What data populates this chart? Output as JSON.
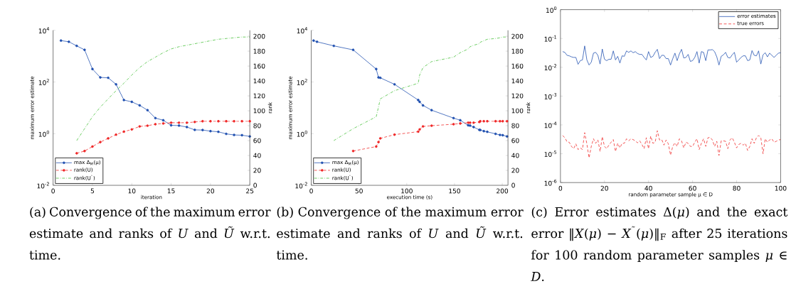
{
  "chart_data": [
    {
      "type": "line",
      "xlabel": "iteration",
      "ylabel": "maximum error estimate",
      "y2label": "rank",
      "x": [
        1,
        2,
        3,
        4,
        5,
        6,
        7,
        8,
        9,
        10,
        11,
        12,
        13,
        14,
        15,
        16,
        17,
        18,
        19,
        20,
        21,
        22,
        23,
        24,
        25
      ],
      "xlim": [
        0,
        25
      ],
      "xticks": [
        0,
        5,
        10,
        15,
        20,
        25
      ],
      "log": "y",
      "ylim": [
        0.01,
        10000
      ],
      "yticks": [
        {
          "value": 0.01,
          "label": "10$^{-2}$"
        },
        {
          "value": 1,
          "label": "10$^{0}$"
        },
        {
          "value": 100,
          "label": "10$^{2}$"
        },
        {
          "value": 10000,
          "label": "10$^{4}$"
        }
      ],
      "y2lim": [
        0,
        208
      ],
      "y2ticks": [
        0,
        20,
        40,
        60,
        80,
        100,
        120,
        140,
        160,
        180,
        200
      ],
      "legend": "bottom left",
      "series": [
        {
          "name": "max Δ$_{M}$(μ)",
          "color": "#2050b0",
          "marker": "circle",
          "line_style": "solid",
          "values": [
            4000,
            3600,
            2500,
            1750,
            316,
            150,
            145,
            81,
            20,
            17,
            12.4,
            8.1,
            4.0,
            3.3,
            2.1,
            2.05,
            1.8,
            1.4,
            1.38,
            1.25,
            1.18,
            0.98,
            0.89,
            0.87,
            0.78
          ]
        },
        {
          "name": "rank(U)",
          "color": "#f02828",
          "marker": "circle",
          "line_style": "dashed",
          "axis": "y2",
          "values": [
            null,
            null,
            43,
            46,
            52,
            58,
            63,
            68,
            72,
            75,
            79,
            80,
            82,
            83,
            84,
            84,
            84,
            85,
            86,
            86,
            86,
            86,
            86,
            86,
            86
          ]
        },
        {
          "name": "rank(U$^{˜}$)",
          "color": "#44c038",
          "marker": "none",
          "line_style": "dashdot",
          "axis": "y2",
          "values": [
            null,
            null,
            60,
            76,
            92,
            105,
            116,
            127,
            137,
            148,
            158,
            166,
            172,
            178,
            183,
            186,
            188,
            190,
            192,
            194,
            196,
            197,
            198,
            199,
            199
          ]
        }
      ],
      "annotations": [
        "(a) Convergence of the maximum error estimate and ranks of *U* and *Ũ* w.r.t. time."
      ]
    },
    {
      "type": "line",
      "xlabel": "execution time (s)",
      "ylabel": "maximum error estimate",
      "y2label": "rank",
      "x": [
        2.4,
        6,
        23.6,
        43.9,
        68,
        70.4,
        72.3,
        87.2,
        112,
        113.5,
        117,
        126,
        149,
        156,
        164.3,
        166.3,
        170,
        176,
        177,
        180.7,
        184.3,
        193,
        197.6,
        200.5,
        205
      ],
      "xlim": [
        0,
        206
      ],
      "xticks": [
        0,
        50,
        100,
        150,
        200
      ],
      "log": "y",
      "ylim": [
        0.01,
        10000
      ],
      "yticks": [
        {
          "value": 0.01,
          "label": "10$^{-2}$"
        },
        {
          "value": 1,
          "label": "10$^{0}$"
        },
        {
          "value": 100,
          "label": "10$^{2}$"
        },
        {
          "value": 10000,
          "label": "10$^{4}$"
        }
      ],
      "y2lim": [
        0,
        208
      ],
      "y2ticks": [
        0,
        20,
        40,
        60,
        80,
        100,
        120,
        140,
        160,
        180,
        200
      ],
      "legend": "bottom left",
      "series": [
        {
          "name": "max Δ$_{M}$(μ)",
          "color": "#2050b0",
          "marker": "circle",
          "line_style": "solid",
          "values": [
            4000,
            3600,
            2500,
            1750,
            316,
            150,
            145,
            81,
            20,
            17,
            12.4,
            8.1,
            4.0,
            3.3,
            2.1,
            2.05,
            1.8,
            1.4,
            1.38,
            1.25,
            1.18,
            0.98,
            0.89,
            0.87,
            0.78
          ]
        },
        {
          "name": "rank(U)",
          "color": "#f02828",
          "marker": "circle",
          "line_style": "dashed",
          "axis": "y2",
          "values": [
            null,
            null,
            null,
            46,
            52,
            58,
            63,
            68,
            72,
            75,
            79,
            80,
            82,
            83,
            84,
            84,
            84,
            85,
            86,
            86,
            86,
            86,
            86,
            86,
            86
          ]
        },
        {
          "name": "rank(U$^{˜}$)",
          "color": "#44c038",
          "marker": "none",
          "line_style": "dashdot",
          "axis": "y2",
          "values": [
            null,
            null,
            60,
            76,
            92,
            105,
            116,
            127,
            137,
            148,
            158,
            166,
            172,
            178,
            183,
            186,
            188,
            190,
            192,
            194,
            196,
            197,
            198,
            199,
            199
          ]
        }
      ],
      "annotations": [
        "(b) Convergence of the maximum error estimate and ranks of *U* and *Ũ* w.r.t. time."
      ]
    },
    {
      "type": "line",
      "xlabel": "random parameter sample μ ∈ D",
      "x": [
        1,
        2,
        3,
        4,
        5,
        6,
        7,
        8,
        9,
        10,
        11,
        12,
        13,
        14,
        15,
        16,
        17,
        18,
        19,
        20,
        21,
        22,
        23,
        24,
        25,
        26,
        27,
        28,
        29,
        30,
        31,
        32,
        33,
        34,
        35,
        36,
        37,
        38,
        39,
        40,
        41,
        42,
        43,
        44,
        45,
        46,
        47,
        48,
        49,
        50,
        51,
        52,
        53,
        54,
        55,
        56,
        57,
        58,
        59,
        60,
        61,
        62,
        63,
        64,
        65,
        66,
        67,
        68,
        69,
        70,
        71,
        72,
        73,
        74,
        75,
        76,
        77,
        78,
        79,
        80,
        81,
        82,
        83,
        84,
        85,
        86,
        87,
        88,
        89,
        90,
        91,
        92,
        93,
        94,
        95,
        96,
        97,
        98,
        99,
        100
      ],
      "xlim": [
        0,
        100
      ],
      "xticks": [
        0,
        20,
        40,
        60,
        80,
        100
      ],
      "log": "y",
      "ylim": [
        1e-06,
        1
      ],
      "yticks": [
        {
          "value": 1e-06,
          "label": "10$^{-6}$"
        },
        {
          "value": 1e-05,
          "label": "10$^{-5}$"
        },
        {
          "value": 0.0001,
          "label": "10$^{-4}$"
        },
        {
          "value": 0.001,
          "label": "10$^{-3}$"
        },
        {
          "value": 0.01,
          "label": "10$^{-2}$"
        },
        {
          "value": 0.1,
          "label": "10$^{-1}$"
        },
        {
          "value": 1,
          "label": "10$^{0}$"
        }
      ],
      "legend": "top right",
      "series": [
        {
          "name": "error estimates",
          "color": "#2050b0",
          "marker": "none",
          "line_style": "solid",
          "values": [
            0.035,
            0.033,
            0.026,
            0.025,
            0.023,
            0.022,
            0.022,
            0.0127,
            0.017,
            0.018,
            0.055,
            0.018,
            0.012,
            0.015,
            0.031,
            0.033,
            0.026,
            0.013,
            0.043,
            0.019,
            0.017,
            0.019,
            0.019,
            0.037,
            0.018,
            0.024,
            0.014,
            0.025,
            0.024,
            0.037,
            0.033,
            0.037,
            0.032,
            0.035,
            0.03,
            0.028,
            0.028,
            0.022,
            0.018,
            0.035,
            0.022,
            0.024,
            0.033,
            0.042,
            0.02,
            0.026,
            0.026,
            0.02,
            0.02,
            0.012,
            0.02,
            0.031,
            0.017,
            0.029,
            0.042,
            0.021,
            0.022,
            0.028,
            0.016,
            0.017,
            0.022,
            0.035,
            0.014,
            0.035,
            0.033,
            0.017,
            0.04,
            0.04,
            0.041,
            0.035,
            0.023,
            0.012,
            0.024,
            0.027,
            0.033,
            0.022,
            0.021,
            0.027,
            0.033,
            0.015,
            0.018,
            0.022,
            0.025,
            0.025,
            0.017,
            0.018,
            0.038,
            0.026,
            0.025,
            0.037,
            0.013,
            0.027,
            0.032,
            0.023,
            0.031,
            0.026,
            0.022,
            0.026,
            0.031,
            0.032
          ]
        },
        {
          "name": "true errors",
          "color": "#f02828",
          "marker": "none",
          "line_style": "dashed",
          "values": [
            4.3e-05,
            3.6e-05,
            2.6e-05,
            2.5e-05,
            1.8e-05,
            1.5e-05,
            2.2e-05,
            1.4e-05,
            1.6e-05,
            1.4e-05,
            5.4e-05,
            2.2e-05,
            7.2e-06,
            1.8e-05,
            3.3e-05,
            2.3e-05,
            3e-05,
            1.2e-05,
            3.9e-05,
            1.8e-05,
            1.5e-05,
            2e-05,
            2.5e-05,
            3.1e-05,
            1.2e-05,
            2.3e-05,
            1.6e-05,
            2.3e-05,
            2.3e-05,
            3.3e-05,
            2.8e-05,
            3.3e-05,
            3.1e-05,
            2.8e-05,
            2.4e-05,
            2.8e-05,
            2.1e-05,
            1.5e-05,
            3.6e-05,
            1.5e-05,
            4.1e-05,
            2.3e-05,
            2.5e-05,
            6.3e-05,
            3e-05,
            3.1e-05,
            2e-05,
            3e-05,
            2.2e-05,
            9e-06,
            1.8e-05,
            2.4e-05,
            1.8e-05,
            3.3e-05,
            2.8e-05,
            1.6e-05,
            2.5e-05,
            2.3e-05,
            1.8e-05,
            1.8e-05,
            2.5e-05,
            3.3e-05,
            1.4e-05,
            2.3e-05,
            3.3e-05,
            1.8e-05,
            3.6e-05,
            3.7e-05,
            3e-05,
            1.8e-05,
            2.7e-05,
            8.7e-06,
            2.8e-05,
            2.8e-05,
            2.7e-05,
            1.5e-05,
            3e-05,
            3.6e-05,
            2.5e-05,
            1.6e-05,
            2.1e-05,
            2.3e-05,
            2e-05,
            2.3e-05,
            1.3e-05,
            1.8e-05,
            3.3e-05,
            2.3e-05,
            3.6e-05,
            4.3e-05,
            3.6e-05,
            1e-05,
            3.3e-05,
            2.5e-05,
            3e-05,
            3.3e-05,
            2.5e-05,
            2.7e-05,
            3e-05,
            3.1e-05
          ]
        }
      ],
      "annotations": [
        "(c) Error estimates Δ(*μ*) and the exact error ‖*X*(*μ*) − *X*$^{˜}$(*μ*)‖$_{F}$ after 25 iterations for 100 random parameter samples *μ* ∈ *D*."
      ]
    }
  ]
}
